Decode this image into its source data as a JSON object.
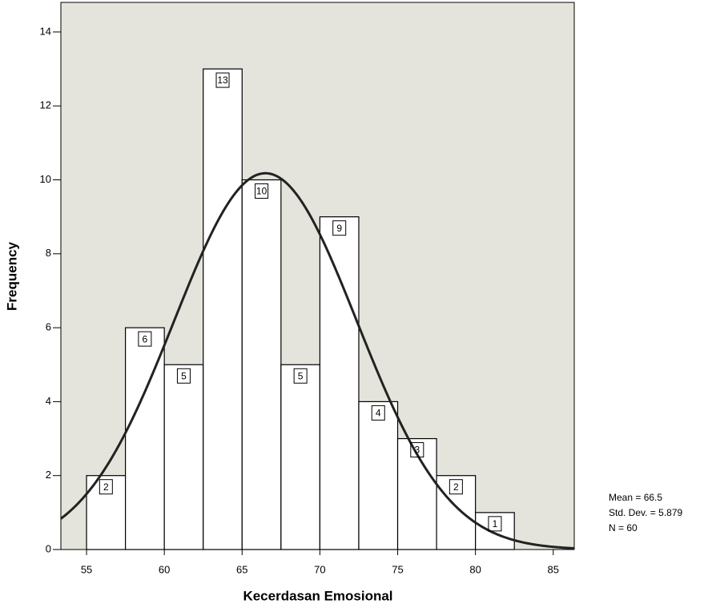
{
  "chart_data": {
    "type": "histogram",
    "x_label": "Kecerdasan Emosional",
    "y_label": "Frequency",
    "bins": [
      55,
      57.5,
      60,
      62.5,
      65,
      67.5,
      70,
      72.5,
      75,
      77.5,
      80,
      82.5
    ],
    "values": [
      2,
      6,
      5,
      13,
      10,
      5,
      9,
      4,
      3,
      2,
      1
    ],
    "color": "#ffffff",
    "xlim": [
      53.35,
      86.35
    ],
    "xticks": [
      55,
      60,
      65,
      70,
      75,
      80,
      85
    ],
    "ylim": [
      0,
      14.8
    ],
    "yticks": [
      0,
      2,
      4,
      6,
      8,
      10,
      12,
      14
    ],
    "stats": [
      {
        "label": "Mean = 66.5",
        "value": 66.5
      },
      {
        "label": "Std. Dev. = 5.879",
        "value": 5.879
      },
      {
        "label": "N = 60",
        "value": 60
      }
    ]
  }
}
